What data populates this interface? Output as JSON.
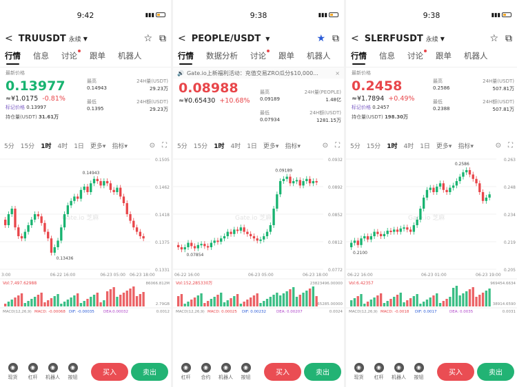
{
  "panels": [
    {
      "time": "9:42",
      "symbol": "TRUUSDT",
      "perp": "永续",
      "starred": false,
      "tabs": [
        "行情",
        "信息",
        "讨论",
        "跟单",
        "机器人"
      ],
      "tab_dot_index": 2,
      "notice": null,
      "last_label": "最新价格",
      "price": "0.13977",
      "direction": "up",
      "fiat": "≈¥1.0175",
      "change": "-0.81%",
      "change_dir": "down",
      "mark_label": "标记价格",
      "mark_price": "0.13997",
      "hold_label": "持仓量(USDT)",
      "hold_value": "31.61万",
      "stats": [
        {
          "k": "最高",
          "v": "0.14943",
          "k2": "24H量(USDT)",
          "v2": "29.23万"
        },
        {
          "k": "最低",
          "v": "0.1395",
          "k2": "24H额(USDT)",
          "v2": "29.23万"
        }
      ],
      "timeframes": [
        "5分",
        "15分",
        "1时",
        "4时",
        "1日",
        "更多▾",
        "指标▾"
      ],
      "tf_active": 2,
      "chart": {
        "y_ticks": [
          "0.1505",
          "0.1462",
          "0.1418",
          "0.1375",
          "0.1331"
        ],
        "x_ticks": [
          "3:00",
          "06-22 16:00",
          "06-23 05:00",
          "06-23 18:00"
        ],
        "hi_label": "0.14943",
        "lo_label": "0.13436",
        "watermark": "Gate.io 芝麻",
        "vol_label": "Vol:7,497.62988",
        "vol_max": "86066.812M",
        "vol_min": "2.79GB",
        "macd_label": "MACD(12,26,9)",
        "macd": "MACD: -0.00068",
        "dif": "DIF: -0.00035",
        "dea": "DEA:0.00032",
        "macd_right": "0.0012"
      }
    },
    {
      "time": "9:38",
      "symbol": "PEOPLE/USDT",
      "perp": "",
      "starred": true,
      "tabs": [
        "行情",
        "数据分析",
        "讨论",
        "跟单",
        "机器人"
      ],
      "tab_dot_index": 2,
      "notice": "Gate.io上新福利活动：充值交易ZRO瓜分$10,000...",
      "last_label": "",
      "price": "0.08988",
      "direction": "down",
      "fiat": "≈¥0.65430",
      "change": "+10.68%",
      "change_dir": "up",
      "mark_label": "",
      "mark_price": "",
      "hold_label": "",
      "hold_value": "",
      "stats": [
        {
          "k": "最高",
          "v": "0.09189",
          "k2": "24H量(PEOPLE)",
          "v2": "1.48亿"
        },
        {
          "k": "最低",
          "v": "0.07934",
          "k2": "24H额(USDT)",
          "v2": "1281.15万"
        }
      ],
      "timeframes": [
        "5分",
        "15分",
        "1时",
        "4时",
        "1日",
        "更多▾",
        "指标▾"
      ],
      "tf_active": 2,
      "chart": {
        "y_ticks": [
          "0.0932",
          "0.0892",
          "0.0852",
          "0.0812",
          "0.0772"
        ],
        "x_ticks": [
          "06-22 16:00",
          "06-23 05:00",
          "06-23 18:00"
        ],
        "hi_label": "0.09189",
        "lo_label": "0.07854",
        "watermark": "Gate.io 芝麻",
        "vol_label": "Vol:152,285330万",
        "vol_max": "23823496.00000",
        "vol_min": "65285.00000",
        "macd_label": "MACD(12,26,9)",
        "macd": "MACD: 0.00025",
        "dif": "DIF: 0.00232",
        "dea": "DEA: 0.00207",
        "macd_right": "0.0024"
      }
    },
    {
      "time": "9:38",
      "symbol": "SLERFUSDT",
      "perp": "永续",
      "starred": false,
      "tabs": [
        "行情",
        "信息",
        "讨论",
        "跟单",
        "机器人"
      ],
      "tab_dot_index": 2,
      "notice": null,
      "last_label": "最新价格",
      "price": "0.2458",
      "direction": "down",
      "fiat": "≈¥1.7894",
      "change": "+0.49%",
      "change_dir": "up",
      "mark_label": "标记价格",
      "mark_price": "0.2457",
      "hold_label": "持仓量(USDT)",
      "hold_value": "198.30万",
      "stats": [
        {
          "k": "最高",
          "v": "0.2586",
          "k2": "24H量(USDT)",
          "v2": "507.81万"
        },
        {
          "k": "最低",
          "v": "0.2388",
          "k2": "24H额(USDT)",
          "v2": "507.81万"
        }
      ],
      "timeframes": [
        "5分",
        "15分",
        "1时",
        "4时",
        "1日",
        "更多▾",
        "指标▾"
      ],
      "tf_active": 2,
      "chart": {
        "y_ticks": [
          "0.263",
          "0.248",
          "0.234",
          "0.219",
          "0.205"
        ],
        "x_ticks": [
          "06-22 16:00",
          "06-23 01:00",
          "06-23 19:00"
        ],
        "hi_label": "0.2586",
        "lo_label": "0.2100",
        "watermark": "Gate.io 芝麻",
        "vol_label": "Vol:6.42357",
        "vol_max": "969454.6634",
        "vol_min": "38914.6590",
        "macd_label": "MACD(12,26,9)",
        "macd": "MACD: -0.0018",
        "dif": "DIF: 0.0017",
        "dea": "DEA: 0.0035",
        "macd_right": "0.0031"
      }
    }
  ],
  "footer": {
    "icons": [
      [
        {
          "name": "check",
          "label": "现货"
        },
        {
          "name": "leverage",
          "label": "杠杆"
        },
        {
          "name": "robot",
          "label": "机器人"
        },
        {
          "name": "more",
          "label": "按钮"
        }
      ],
      [
        {
          "name": "leverage",
          "label": "杠杆"
        },
        {
          "name": "contract",
          "label": "合约"
        },
        {
          "name": "robot",
          "label": "机器人"
        },
        {
          "name": "more",
          "label": "按钮"
        }
      ],
      [
        {
          "name": "check",
          "label": "现货"
        },
        {
          "name": "leverage",
          "label": "杠杆"
        },
        {
          "name": "robot",
          "label": "机器人"
        },
        {
          "name": "more",
          "label": "按钮"
        }
      ]
    ],
    "buy": "买入",
    "sell": "卖出"
  },
  "colors": {
    "up": "#18b370",
    "down": "#e8464a",
    "accent": "#2a5bd7"
  }
}
